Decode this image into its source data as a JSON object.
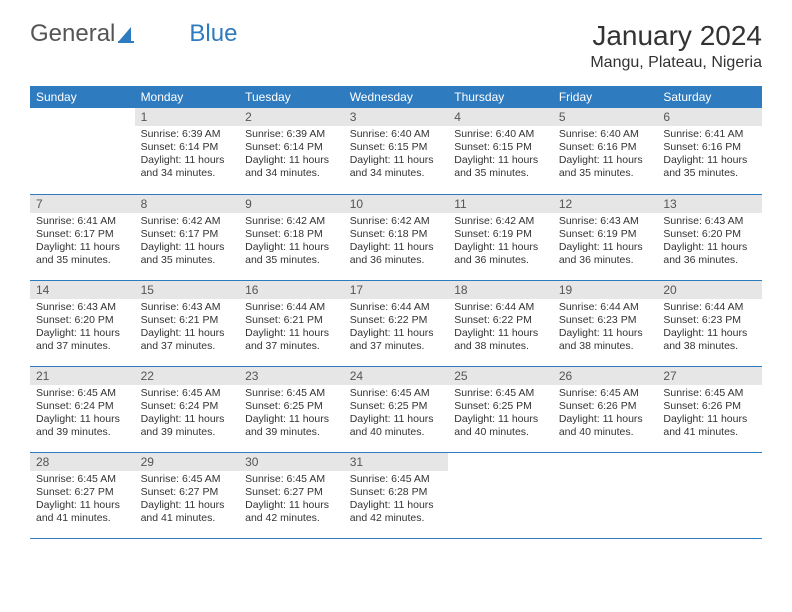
{
  "brand": {
    "part1": "General",
    "part2": "Blue"
  },
  "title": "January 2024",
  "location": "Mangu, Plateau, Nigeria",
  "weekdays": [
    "Sunday",
    "Monday",
    "Tuesday",
    "Wednesday",
    "Thursday",
    "Friday",
    "Saturday"
  ],
  "colors": {
    "header_bg": "#2f7bbf",
    "header_text": "#ffffff",
    "daynum_bg": "#e6e6e6",
    "row_border": "#2f7bbf",
    "page_bg": "#ffffff",
    "text": "#333333"
  },
  "typography": {
    "title_fontsize": 28,
    "location_fontsize": 16,
    "cell_fontsize": 10.5,
    "weekday_fontsize": 12
  },
  "layout": {
    "columns": 7,
    "rows": 5,
    "first_weekday_index": 1,
    "days_in_month": 31
  },
  "days": [
    {
      "n": 1,
      "sunrise": "6:39 AM",
      "sunset": "6:14 PM",
      "daylight": "11 hours and 34 minutes."
    },
    {
      "n": 2,
      "sunrise": "6:39 AM",
      "sunset": "6:14 PM",
      "daylight": "11 hours and 34 minutes."
    },
    {
      "n": 3,
      "sunrise": "6:40 AM",
      "sunset": "6:15 PM",
      "daylight": "11 hours and 34 minutes."
    },
    {
      "n": 4,
      "sunrise": "6:40 AM",
      "sunset": "6:15 PM",
      "daylight": "11 hours and 35 minutes."
    },
    {
      "n": 5,
      "sunrise": "6:40 AM",
      "sunset": "6:16 PM",
      "daylight": "11 hours and 35 minutes."
    },
    {
      "n": 6,
      "sunrise": "6:41 AM",
      "sunset": "6:16 PM",
      "daylight": "11 hours and 35 minutes."
    },
    {
      "n": 7,
      "sunrise": "6:41 AM",
      "sunset": "6:17 PM",
      "daylight": "11 hours and 35 minutes."
    },
    {
      "n": 8,
      "sunrise": "6:42 AM",
      "sunset": "6:17 PM",
      "daylight": "11 hours and 35 minutes."
    },
    {
      "n": 9,
      "sunrise": "6:42 AM",
      "sunset": "6:18 PM",
      "daylight": "11 hours and 35 minutes."
    },
    {
      "n": 10,
      "sunrise": "6:42 AM",
      "sunset": "6:18 PM",
      "daylight": "11 hours and 36 minutes."
    },
    {
      "n": 11,
      "sunrise": "6:42 AM",
      "sunset": "6:19 PM",
      "daylight": "11 hours and 36 minutes."
    },
    {
      "n": 12,
      "sunrise": "6:43 AM",
      "sunset": "6:19 PM",
      "daylight": "11 hours and 36 minutes."
    },
    {
      "n": 13,
      "sunrise": "6:43 AM",
      "sunset": "6:20 PM",
      "daylight": "11 hours and 36 minutes."
    },
    {
      "n": 14,
      "sunrise": "6:43 AM",
      "sunset": "6:20 PM",
      "daylight": "11 hours and 37 minutes."
    },
    {
      "n": 15,
      "sunrise": "6:43 AM",
      "sunset": "6:21 PM",
      "daylight": "11 hours and 37 minutes."
    },
    {
      "n": 16,
      "sunrise": "6:44 AM",
      "sunset": "6:21 PM",
      "daylight": "11 hours and 37 minutes."
    },
    {
      "n": 17,
      "sunrise": "6:44 AM",
      "sunset": "6:22 PM",
      "daylight": "11 hours and 37 minutes."
    },
    {
      "n": 18,
      "sunrise": "6:44 AM",
      "sunset": "6:22 PM",
      "daylight": "11 hours and 38 minutes."
    },
    {
      "n": 19,
      "sunrise": "6:44 AM",
      "sunset": "6:23 PM",
      "daylight": "11 hours and 38 minutes."
    },
    {
      "n": 20,
      "sunrise": "6:44 AM",
      "sunset": "6:23 PM",
      "daylight": "11 hours and 38 minutes."
    },
    {
      "n": 21,
      "sunrise": "6:45 AM",
      "sunset": "6:24 PM",
      "daylight": "11 hours and 39 minutes."
    },
    {
      "n": 22,
      "sunrise": "6:45 AM",
      "sunset": "6:24 PM",
      "daylight": "11 hours and 39 minutes."
    },
    {
      "n": 23,
      "sunrise": "6:45 AM",
      "sunset": "6:25 PM",
      "daylight": "11 hours and 39 minutes."
    },
    {
      "n": 24,
      "sunrise": "6:45 AM",
      "sunset": "6:25 PM",
      "daylight": "11 hours and 40 minutes."
    },
    {
      "n": 25,
      "sunrise": "6:45 AM",
      "sunset": "6:25 PM",
      "daylight": "11 hours and 40 minutes."
    },
    {
      "n": 26,
      "sunrise": "6:45 AM",
      "sunset": "6:26 PM",
      "daylight": "11 hours and 40 minutes."
    },
    {
      "n": 27,
      "sunrise": "6:45 AM",
      "sunset": "6:26 PM",
      "daylight": "11 hours and 41 minutes."
    },
    {
      "n": 28,
      "sunrise": "6:45 AM",
      "sunset": "6:27 PM",
      "daylight": "11 hours and 41 minutes."
    },
    {
      "n": 29,
      "sunrise": "6:45 AM",
      "sunset": "6:27 PM",
      "daylight": "11 hours and 41 minutes."
    },
    {
      "n": 30,
      "sunrise": "6:45 AM",
      "sunset": "6:27 PM",
      "daylight": "11 hours and 42 minutes."
    },
    {
      "n": 31,
      "sunrise": "6:45 AM",
      "sunset": "6:28 PM",
      "daylight": "11 hours and 42 minutes."
    }
  ],
  "labels": {
    "sunrise": "Sunrise:",
    "sunset": "Sunset:",
    "daylight": "Daylight:"
  }
}
